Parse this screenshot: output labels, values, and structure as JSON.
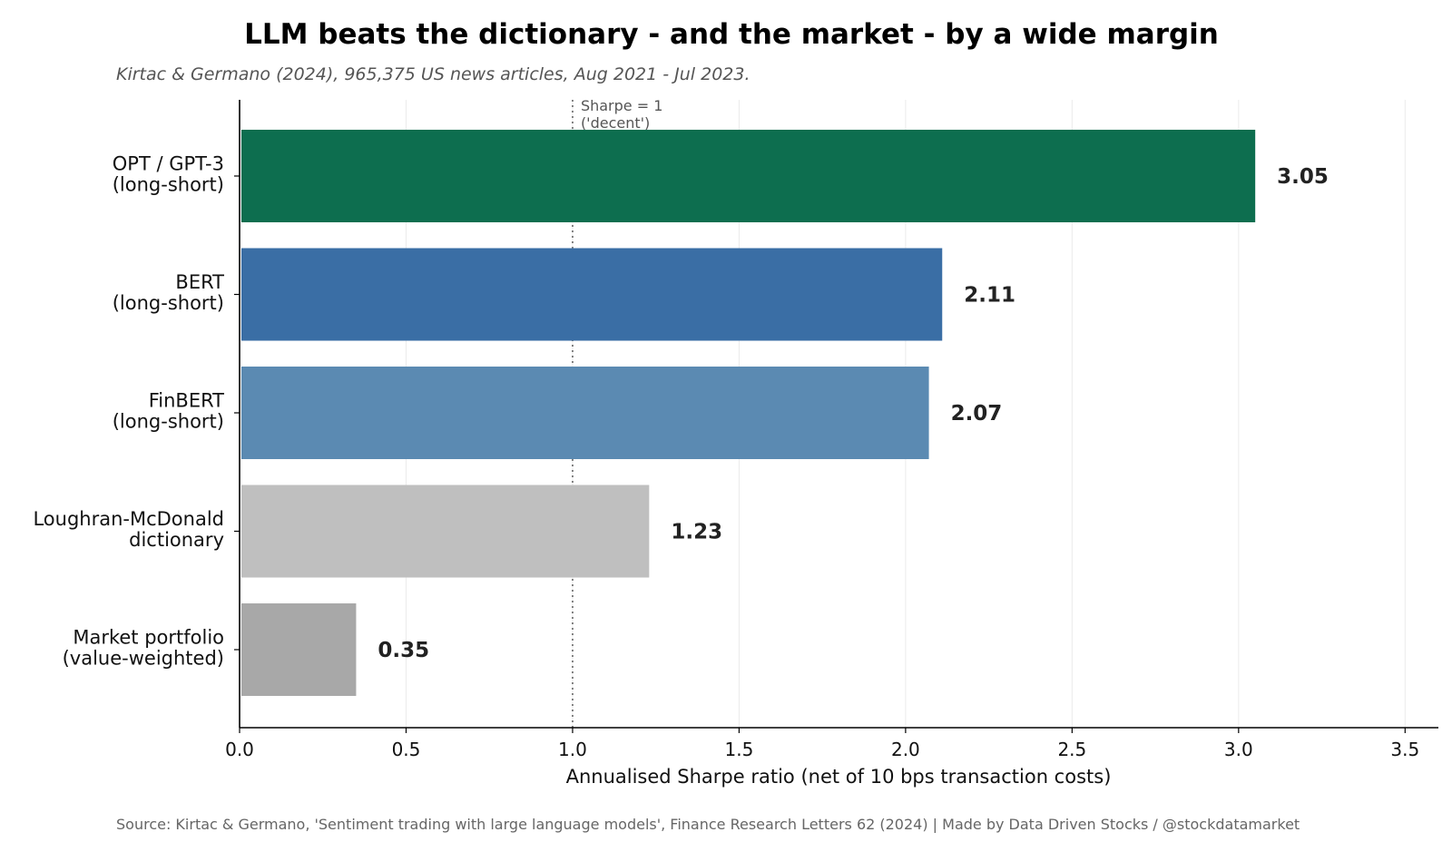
{
  "chart_data": {
    "type": "bar",
    "orientation": "horizontal",
    "title": "LLM beats the dictionary - and the market - by a wide margin",
    "subtitle": "Kirtac & Germano (2024), 965,375 US news articles, Aug 2021 - Jul 2023.",
    "xlabel": "Annualised Sharpe ratio (net of 10 bps transaction costs)",
    "ylabel": "",
    "xlim": [
      0,
      3.6
    ],
    "xticks": [
      "0.0",
      "0.5",
      "1.0",
      "1.5",
      "2.0",
      "2.5",
      "3.0",
      "3.5"
    ],
    "grid": "vertical",
    "categories": [
      [
        "OPT / GPT-3",
        "(long-short)"
      ],
      [
        "BERT",
        "(long-short)"
      ],
      [
        "FinBERT",
        "(long-short)"
      ],
      [
        "Loughran-McDonald",
        "dictionary"
      ],
      [
        "Market portfolio",
        "(value-weighted)"
      ]
    ],
    "values": [
      3.05,
      2.11,
      2.07,
      1.23,
      0.35
    ],
    "value_labels": [
      "3.05",
      "2.11",
      "2.07",
      "1.23",
      "0.35"
    ],
    "colors": [
      "#0d6e4f",
      "#3a6ea5",
      "#5b8ab2",
      "#bfbfbf",
      "#a8a8a8"
    ],
    "reference_line": {
      "x": 1.0,
      "style": "dotted",
      "label": [
        "Sharpe = 1",
        "('decent')"
      ]
    },
    "source": "Source: Kirtac & Germano, 'Sentiment trading with large language models', Finance Research Letters 62 (2024)  |  Made by Data Driven Stocks / @stockdatamarket"
  }
}
